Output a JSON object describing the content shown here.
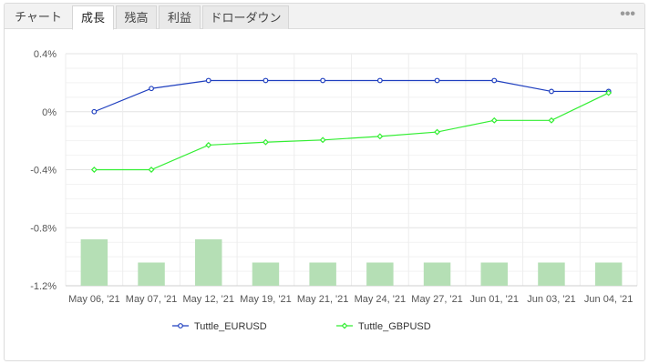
{
  "tabs": [
    {
      "label": "チャート"
    },
    {
      "label": "成長"
    },
    {
      "label": "残高"
    },
    {
      "label": "利益"
    },
    {
      "label": "ドローダウン"
    }
  ],
  "active_tab": 1,
  "more_label": "•••",
  "colors": {
    "series_1": "#1f3fbf",
    "series_2": "#33ee33",
    "bars": "#b5dfb5",
    "grid": "#e6e6e6"
  },
  "chart_data": {
    "type": "line",
    "categories": [
      "May 06, '21",
      "May 07, '21",
      "May 12, '21",
      "May 19, '21",
      "May 21, '21",
      "May 24, '21",
      "May 27, '21",
      "Jun 01, '21",
      "Jun 03, '21",
      "Jun 04, '21"
    ],
    "y_ticks": [
      "0.4%",
      "0%",
      "-0.4%",
      "-0.8%",
      "-1.2%"
    ],
    "ylim": [
      -1.2,
      0.4
    ],
    "grid": true,
    "legend_position": "bottom",
    "series": [
      {
        "name": "Tuttle_EURUSD",
        "values": [
          0.0,
          0.16,
          0.215,
          0.215,
          0.215,
          0.215,
          0.215,
          0.215,
          0.14,
          0.14
        ]
      },
      {
        "name": "Tuttle_GBPUSD",
        "values": [
          -0.4,
          -0.4,
          -0.23,
          -0.21,
          -0.195,
          -0.17,
          -0.14,
          -0.06,
          -0.06,
          0.13
        ]
      }
    ],
    "bars": {
      "values": [
        -0.88,
        -1.04,
        -0.88,
        -1.04,
        -1.04,
        -1.04,
        -1.04,
        -1.04,
        -1.04,
        -1.04
      ]
    }
  }
}
